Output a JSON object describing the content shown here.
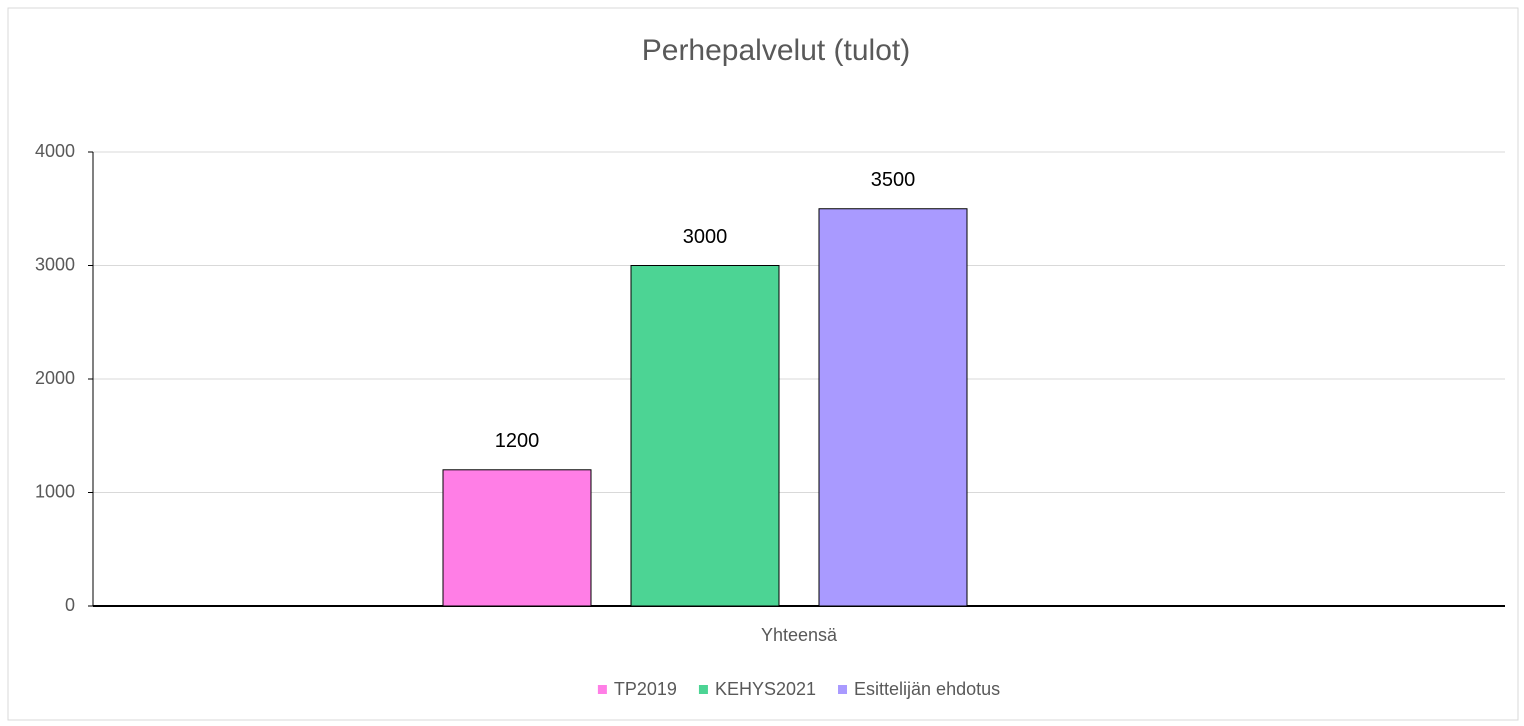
{
  "chart_data": {
    "type": "bar",
    "title": "Perhepalvelut (tulot)",
    "categories": [
      "Yhteensä"
    ],
    "series": [
      {
        "name": "TP2019",
        "color": "#ff7ee6",
        "values": [
          1200
        ]
      },
      {
        "name": "KEHYS2021",
        "color": "#4cd494",
        "values": [
          3000
        ]
      },
      {
        "name": "Esittelijän ehdotus",
        "color": "#a99aff",
        "values": [
          3500
        ]
      }
    ],
    "ylim": [
      0,
      4000
    ],
    "yticks": [
      0,
      1000,
      2000,
      3000,
      4000
    ],
    "grid": true,
    "legend": "bottom"
  }
}
